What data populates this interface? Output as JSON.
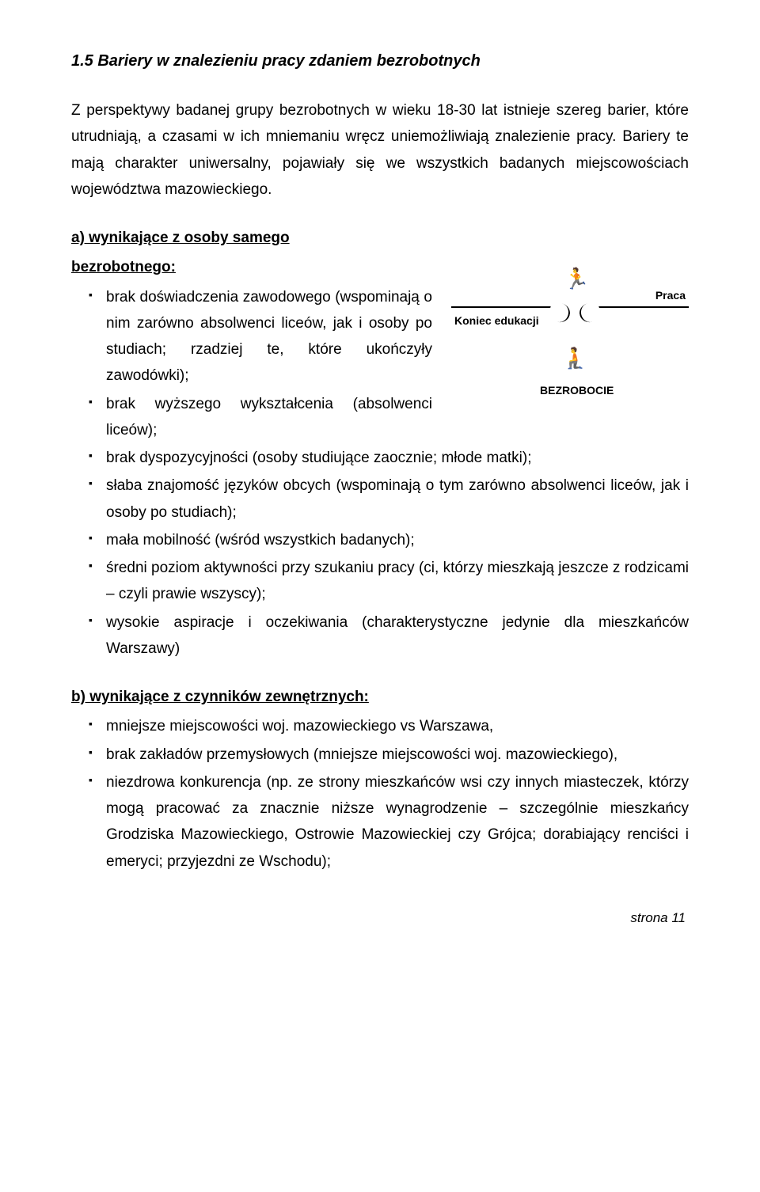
{
  "heading": "1.5  Bariery w znalezieniu pracy zdaniem bezrobotnych",
  "intro": "Z perspektywy badanej grupy bezrobotnych w wieku 18-30 lat istnieje szereg barier, które utrudniają, a czasami w ich mniemaniu wręcz uniemożliwiają znalezienie pracy. Bariery te mają charakter uniwersalny, pojawiały się we wszystkich badanych miejscowościach województwa mazowieckiego.",
  "section_a_title1": "a) wynikające z osoby samego",
  "section_a_title2": "bezrobotnego:",
  "bullets_a_left": [
    "brak doświadczenia zawodowego (wspominają o nim zarówno absolwenci liceów, jak i osoby po studiach; rzadziej te, które ukończyły zawodówki);",
    "brak wyższego wykształcenia (absolwenci liceów);"
  ],
  "bullets_a_full": [
    "brak dyspozycyjności (osoby studiujące zaocznie; młode matki);",
    "słaba znajomość języków obcych (wspominają o tym zarówno absolwenci liceów, jak i osoby po studiach);",
    "mała mobilność (wśród wszystkich badanych);",
    "średni poziom aktywności przy szukaniu pracy (ci, którzy mieszkają jeszcze z rodzicami – czyli prawie wszyscy);",
    "wysokie aspiracje i oczekiwania (charakterystyczne jedynie dla mieszkańców Warszawy)"
  ],
  "diagram": {
    "left_label": "Koniec edukacji",
    "right_label": "Praca",
    "bottom_label": "BEZROBOCIE"
  },
  "section_b_title": "b) wynikające z czynników zewnętrznych:",
  "bullets_b": [
    " mniejsze miejscowości woj. mazowieckiego vs Warszawa,",
    "brak zakładów przemysłowych (mniejsze miejscowości woj. mazowieckiego),",
    "niezdrowa konkurencja (np. ze strony mieszkańców wsi czy innych miasteczek, którzy mogą pracować za znacznie niższe wynagrodzenie – szczególnie mieszkańcy  Grodziska Mazowieckiego, Ostrowie Mazowieckiej czy Grójca; dorabiający renciści i emeryci; przyjezdni ze Wschodu);"
  ],
  "footer": "strona 11"
}
